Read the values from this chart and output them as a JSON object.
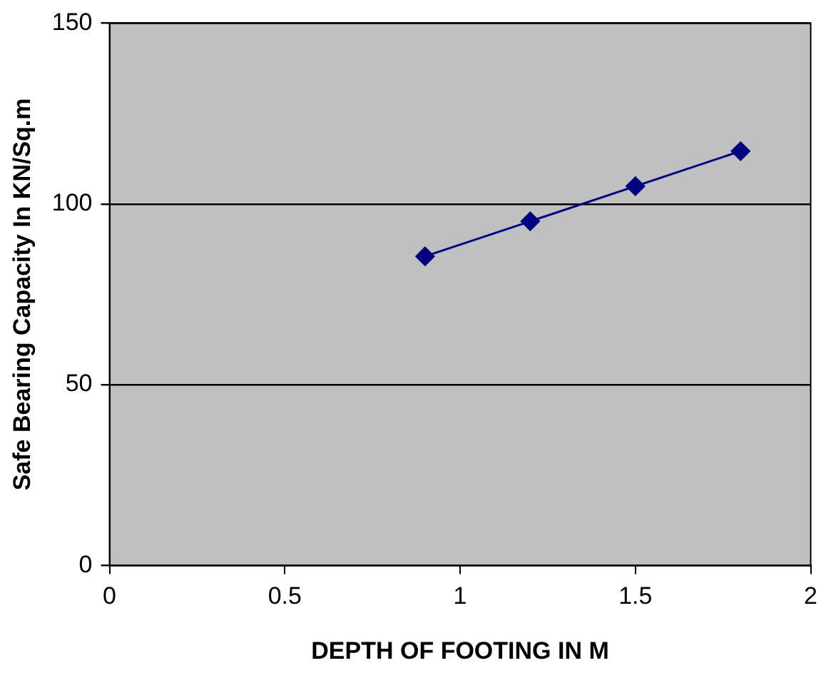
{
  "chart_data": {
    "type": "line",
    "xlabel": "DEPTH OF FOOTING IN M",
    "ylabel": "Safe Bearing Capacity In KN/Sq.m",
    "x": [
      0.9,
      1.2,
      1.5,
      1.8
    ],
    "series": [
      {
        "color": "#000080",
        "values": [
          85.5,
          95.2,
          104.9,
          114.6
        ]
      }
    ],
    "xlim": [
      0,
      2
    ],
    "xticks": [
      0,
      0.5,
      1,
      1.5,
      2
    ],
    "ylim": [
      0,
      150
    ],
    "yticks": [
      0,
      50,
      100,
      150
    ],
    "grid": "y",
    "legend": false,
    "marker": "diamond",
    "line_style": "solid"
  }
}
